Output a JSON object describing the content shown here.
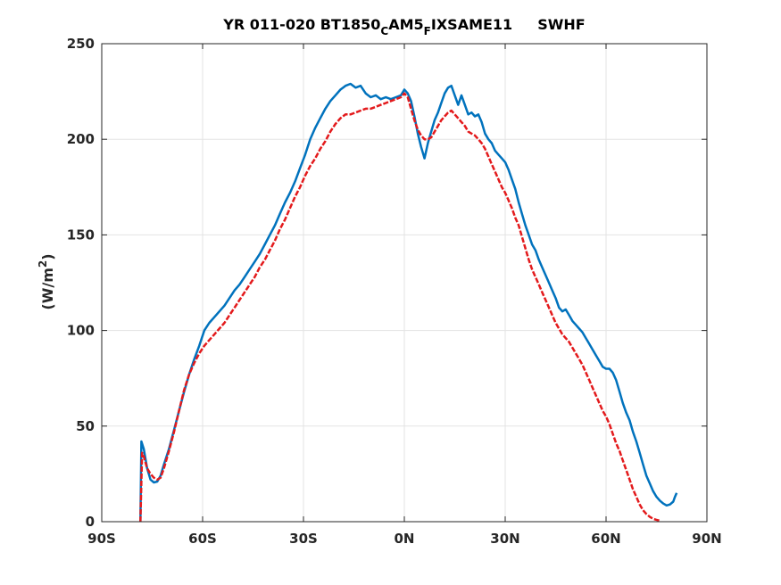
{
  "chart_data": {
    "type": "line",
    "title": {
      "prefix": "YR 011-020 BT1850",
      "sub1": "C",
      "mid": "AM5",
      "sub2": "F",
      "suffix": "IXSAME11",
      "variable": "SWHF"
    },
    "ylabel": {
      "main": "(W/m",
      "sup": "2",
      "close": ")"
    },
    "xlabel": "",
    "xlim": [
      -90,
      90
    ],
    "ylim": [
      0,
      250
    ],
    "grid": true,
    "x_ticks": [
      -90,
      -60,
      -30,
      0,
      30,
      60,
      90
    ],
    "x_tick_labels": [
      "90S",
      "60S",
      "30S",
      "0N",
      "30N",
      "60N",
      "90N"
    ],
    "y_ticks": [
      0,
      50,
      100,
      150,
      200,
      250
    ],
    "y_tick_labels": [
      "0",
      "50",
      "100",
      "150",
      "200",
      "250"
    ],
    "series": [
      {
        "color": "#0072BD",
        "style": "solid",
        "points": [
          [
            -78.5,
            0
          ],
          [
            -78.2,
            42
          ],
          [
            -77.5,
            38
          ],
          [
            -76.5,
            28
          ],
          [
            -75.5,
            22
          ],
          [
            -74.5,
            20.5
          ],
          [
            -73.5,
            21
          ],
          [
            -72.5,
            24
          ],
          [
            -71.5,
            30
          ],
          [
            -70,
            38
          ],
          [
            -68.5,
            48
          ],
          [
            -67,
            58
          ],
          [
            -65.5,
            68
          ],
          [
            -64,
            77
          ],
          [
            -62.5,
            85
          ],
          [
            -61,
            92
          ],
          [
            -59.5,
            100
          ],
          [
            -58,
            104
          ],
          [
            -56.5,
            107
          ],
          [
            -55,
            110
          ],
          [
            -53.5,
            113
          ],
          [
            -52,
            117
          ],
          [
            -50.5,
            121
          ],
          [
            -49,
            124
          ],
          [
            -47.5,
            128
          ],
          [
            -46,
            132
          ],
          [
            -44.5,
            136
          ],
          [
            -43,
            140
          ],
          [
            -41.5,
            145
          ],
          [
            -40,
            150
          ],
          [
            -38.5,
            155
          ],
          [
            -37,
            161
          ],
          [
            -35.5,
            167
          ],
          [
            -34,
            172
          ],
          [
            -32.5,
            178
          ],
          [
            -31,
            185
          ],
          [
            -29.5,
            192
          ],
          [
            -28,
            200
          ],
          [
            -26.5,
            206
          ],
          [
            -25,
            211
          ],
          [
            -23.5,
            216
          ],
          [
            -22,
            220
          ],
          [
            -20.5,
            223
          ],
          [
            -19,
            226
          ],
          [
            -17.5,
            228
          ],
          [
            -16,
            229
          ],
          [
            -14.5,
            227
          ],
          [
            -13,
            228
          ],
          [
            -11.5,
            224
          ],
          [
            -10,
            222
          ],
          [
            -8.5,
            223
          ],
          [
            -7,
            221
          ],
          [
            -5.5,
            222
          ],
          [
            -4,
            221
          ],
          [
            -2.5,
            222
          ],
          [
            -1,
            223
          ],
          [
            0,
            226
          ],
          [
            1,
            224
          ],
          [
            2,
            220
          ],
          [
            3,
            212
          ],
          [
            4,
            203
          ],
          [
            5,
            196
          ],
          [
            5.5,
            193
          ],
          [
            6,
            190
          ],
          [
            6.5,
            194
          ],
          [
            7,
            198
          ],
          [
            8,
            204
          ],
          [
            9,
            210
          ],
          [
            10,
            214
          ],
          [
            11,
            219
          ],
          [
            12,
            224
          ],
          [
            13,
            227
          ],
          [
            14,
            228
          ],
          [
            15,
            223
          ],
          [
            16,
            218
          ],
          [
            17,
            223
          ],
          [
            18,
            218
          ],
          [
            19,
            213
          ],
          [
            20,
            214
          ],
          [
            21,
            212
          ],
          [
            22,
            213
          ],
          [
            23,
            209
          ],
          [
            24,
            203
          ],
          [
            25,
            200
          ],
          [
            26,
            198
          ],
          [
            27,
            194
          ],
          [
            28,
            192
          ],
          [
            29,
            190
          ],
          [
            30,
            188
          ],
          [
            31,
            184
          ],
          [
            32,
            179
          ],
          [
            33,
            174
          ],
          [
            34,
            167
          ],
          [
            35,
            161
          ],
          [
            36,
            155
          ],
          [
            37,
            150
          ],
          [
            38,
            145
          ],
          [
            39,
            142
          ],
          [
            40,
            137
          ],
          [
            41,
            133
          ],
          [
            42,
            129
          ],
          [
            43,
            125
          ],
          [
            44,
            121
          ],
          [
            45,
            117
          ],
          [
            46,
            112
          ],
          [
            47,
            110
          ],
          [
            48,
            111
          ],
          [
            49,
            108
          ],
          [
            50,
            105
          ],
          [
            51,
            103
          ],
          [
            52,
            101
          ],
          [
            53,
            99
          ],
          [
            54,
            96
          ],
          [
            55,
            93
          ],
          [
            56,
            90
          ],
          [
            57,
            87
          ],
          [
            58,
            84
          ],
          [
            59,
            81
          ],
          [
            60,
            80
          ],
          [
            61,
            80
          ],
          [
            62,
            78
          ],
          [
            63,
            74
          ],
          [
            64,
            68
          ],
          [
            65,
            62
          ],
          [
            66,
            57
          ],
          [
            67,
            53
          ],
          [
            68,
            47
          ],
          [
            69,
            42
          ],
          [
            70,
            36
          ],
          [
            71,
            30
          ],
          [
            72,
            24
          ],
          [
            73,
            20
          ],
          [
            74,
            16
          ],
          [
            75,
            13
          ],
          [
            76,
            11
          ],
          [
            77,
            9.5
          ],
          [
            78,
            8.5
          ],
          [
            79,
            9
          ],
          [
            80,
            10.5
          ],
          [
            80.5,
            13
          ],
          [
            81,
            15
          ]
        ]
      },
      {
        "color": "#E31A1C",
        "style": "dashed",
        "points": [
          [
            -78.5,
            0
          ],
          [
            -78,
            36
          ],
          [
            -77.5,
            34
          ],
          [
            -76.5,
            28
          ],
          [
            -75.5,
            25
          ],
          [
            -74.5,
            23
          ],
          [
            -73.5,
            22
          ],
          [
            -72.5,
            23
          ],
          [
            -71.5,
            28
          ],
          [
            -70,
            37
          ],
          [
            -68.5,
            47
          ],
          [
            -67,
            58
          ],
          [
            -65.5,
            69
          ],
          [
            -64,
            77
          ],
          [
            -62.5,
            83
          ],
          [
            -61,
            88
          ],
          [
            -59.5,
            92
          ],
          [
            -58,
            95
          ],
          [
            -56.5,
            98
          ],
          [
            -55,
            101
          ],
          [
            -53.5,
            104
          ],
          [
            -52,
            108
          ],
          [
            -50.5,
            112
          ],
          [
            -49,
            116
          ],
          [
            -47.5,
            120
          ],
          [
            -46,
            124
          ],
          [
            -44.5,
            128
          ],
          [
            -43,
            133
          ],
          [
            -41.5,
            137
          ],
          [
            -40,
            142
          ],
          [
            -38.5,
            147
          ],
          [
            -37,
            153
          ],
          [
            -35.5,
            158
          ],
          [
            -34,
            164
          ],
          [
            -32.5,
            170
          ],
          [
            -31,
            175
          ],
          [
            -29.5,
            181
          ],
          [
            -28,
            186
          ],
          [
            -26.5,
            190
          ],
          [
            -25,
            195
          ],
          [
            -23.5,
            199
          ],
          [
            -22,
            204
          ],
          [
            -20.5,
            208
          ],
          [
            -19,
            211
          ],
          [
            -17.5,
            213
          ],
          [
            -16,
            213
          ],
          [
            -14.5,
            214
          ],
          [
            -13,
            215
          ],
          [
            -11.5,
            216
          ],
          [
            -10,
            216
          ],
          [
            -8.5,
            217
          ],
          [
            -7,
            218
          ],
          [
            -5.5,
            219
          ],
          [
            -4,
            220
          ],
          [
            -2.5,
            221
          ],
          [
            -1,
            222
          ],
          [
            0,
            224
          ],
          [
            1,
            222
          ],
          [
            2,
            216
          ],
          [
            3,
            210
          ],
          [
            4,
            205
          ],
          [
            5,
            202
          ],
          [
            6,
            200
          ],
          [
            7,
            200
          ],
          [
            8,
            201
          ],
          [
            9,
            204
          ],
          [
            10,
            207
          ],
          [
            11,
            210
          ],
          [
            12,
            212
          ],
          [
            13,
            214
          ],
          [
            14,
            215
          ],
          [
            15,
            213
          ],
          [
            16,
            211
          ],
          [
            17,
            209
          ],
          [
            18,
            207
          ],
          [
            19,
            204
          ],
          [
            20,
            203
          ],
          [
            21,
            202
          ],
          [
            22,
            200
          ],
          [
            23,
            198
          ],
          [
            24,
            195
          ],
          [
            25,
            191
          ],
          [
            26,
            187
          ],
          [
            27,
            183
          ],
          [
            28,
            179
          ],
          [
            29,
            175
          ],
          [
            30,
            172
          ],
          [
            31,
            168
          ],
          [
            32,
            164
          ],
          [
            33,
            159
          ],
          [
            34,
            155
          ],
          [
            35,
            149
          ],
          [
            36,
            143
          ],
          [
            37,
            137
          ],
          [
            38,
            132
          ],
          [
            39,
            128
          ],
          [
            40,
            124
          ],
          [
            41,
            120
          ],
          [
            42,
            116
          ],
          [
            43,
            112
          ],
          [
            44,
            108
          ],
          [
            45,
            104
          ],
          [
            46,
            101
          ],
          [
            47,
            98
          ],
          [
            48,
            96
          ],
          [
            49,
            94
          ],
          [
            50,
            91
          ],
          [
            51,
            88
          ],
          [
            52,
            85
          ],
          [
            53,
            82
          ],
          [
            54,
            78
          ],
          [
            55,
            74
          ],
          [
            56,
            70
          ],
          [
            57,
            66
          ],
          [
            58,
            62
          ],
          [
            59,
            58
          ],
          [
            60,
            55
          ],
          [
            61,
            51
          ],
          [
            62,
            46
          ],
          [
            63,
            41
          ],
          [
            64,
            37
          ],
          [
            65,
            32
          ],
          [
            66,
            27
          ],
          [
            67,
            22
          ],
          [
            68,
            17
          ],
          [
            69,
            13
          ],
          [
            70,
            9
          ],
          [
            71,
            6
          ],
          [
            72,
            4
          ],
          [
            73,
            2.5
          ],
          [
            74,
            1.5
          ],
          [
            75,
            1
          ],
          [
            76,
            0.5
          ]
        ]
      }
    ]
  }
}
